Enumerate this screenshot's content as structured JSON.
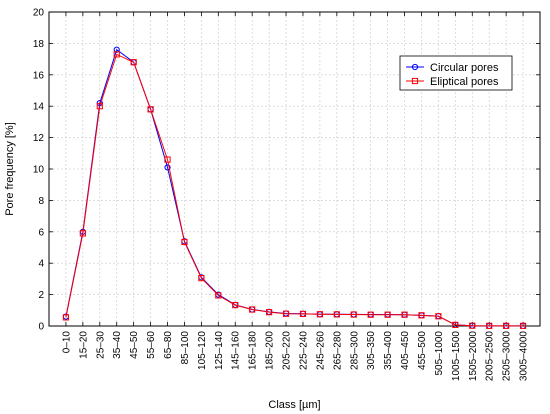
{
  "chart_data": {
    "type": "line",
    "xlabel": "Class [µm]",
    "ylabel": "Pore frequency [%]",
    "ylim": [
      0,
      20
    ],
    "yticks": [
      0,
      2,
      4,
      6,
      8,
      10,
      12,
      14,
      16,
      18,
      20
    ],
    "grid": true,
    "legend_position": "top-right",
    "categories": [
      "0–10",
      "15–20",
      "25–30",
      "35–40",
      "45–50",
      "55–60",
      "65–80",
      "85–100",
      "105–120",
      "125–140",
      "145–160",
      "165–180",
      "185–200",
      "205–220",
      "225–240",
      "245–260",
      "265–280",
      "285–300",
      "305–350",
      "355–400",
      "405–450",
      "455–500",
      "505–1000",
      "1005–1500",
      "1505–2000",
      "2005–2500",
      "2505–3000",
      "3005–4000"
    ],
    "series": [
      {
        "name": "Circular pores",
        "color": "#0000ff",
        "marker": "circle",
        "values": [
          0.6,
          6.0,
          14.2,
          17.6,
          16.8,
          13.8,
          10.1,
          5.4,
          3.1,
          2.0,
          1.35,
          1.05,
          0.9,
          0.8,
          0.78,
          0.75,
          0.75,
          0.74,
          0.73,
          0.73,
          0.72,
          0.68,
          0.63,
          0.07,
          0.02,
          0.01,
          0.01,
          0.01
        ]
      },
      {
        "name": "Eliptical pores",
        "color": "#ff0000",
        "marker": "square",
        "values": [
          0.55,
          5.9,
          14.0,
          17.3,
          16.8,
          13.8,
          10.6,
          5.35,
          3.05,
          1.95,
          1.33,
          1.05,
          0.88,
          0.78,
          0.77,
          0.75,
          0.74,
          0.73,
          0.72,
          0.72,
          0.72,
          0.68,
          0.62,
          0.07,
          0.02,
          0.01,
          0.01,
          0.01
        ]
      }
    ]
  }
}
